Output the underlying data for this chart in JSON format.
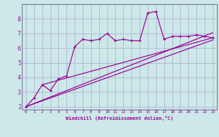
{
  "bg_color": "#cce8e8",
  "grid_color": "#aaaacc",
  "line_color": "#990099",
  "xlabel": "Windchill (Refroidissement éolien,°C)",
  "xlim": [
    -0.5,
    23.5
  ],
  "ylim": [
    1.8,
    9.0
  ],
  "yticks": [
    2,
    3,
    4,
    5,
    6,
    7,
    8
  ],
  "xticks": [
    0,
    1,
    2,
    3,
    4,
    5,
    6,
    7,
    8,
    9,
    10,
    11,
    12,
    13,
    14,
    15,
    16,
    17,
    18,
    19,
    20,
    21,
    22,
    23
  ],
  "zigzag_x": [
    0,
    1,
    2,
    3,
    4,
    5,
    6,
    7,
    8,
    9,
    10,
    11,
    12,
    13,
    14,
    15,
    16,
    17,
    18,
    19,
    20,
    21,
    22,
    23
  ],
  "zigzag_y": [
    2.0,
    2.6,
    3.5,
    3.1,
    3.9,
    4.1,
    6.1,
    6.6,
    6.5,
    6.6,
    7.0,
    6.5,
    6.6,
    6.5,
    6.5,
    8.4,
    8.5,
    6.6,
    6.8,
    6.8,
    6.8,
    6.9,
    6.8,
    6.7
  ],
  "line1_x": [
    0,
    23
  ],
  "line1_y": [
    2.0,
    6.55
  ],
  "line2_x": [
    0,
    23
  ],
  "line2_y": [
    2.0,
    7.05
  ],
  "line3_x": [
    2,
    23
  ],
  "line3_y": [
    3.5,
    6.7
  ]
}
